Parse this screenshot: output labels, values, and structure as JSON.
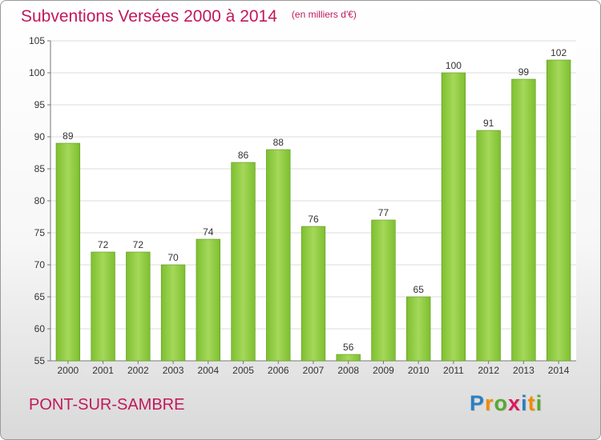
{
  "title": "Subventions Versées 2000 à 2014",
  "subtitle": "(en milliers d'€)",
  "commune": "PONT-SUR-SAMBRE",
  "logo": {
    "letters": [
      "P",
      "r",
      "o",
      "x",
      "i",
      "t",
      "i"
    ],
    "colors": [
      "#2a7fc1",
      "#f08a00",
      "#57a82f",
      "#d81b60",
      "#2a7fc1",
      "#f08a00",
      "#57a82f"
    ]
  },
  "chart_data": {
    "type": "bar",
    "categories": [
      "2000",
      "2001",
      "2002",
      "2003",
      "2004",
      "2005",
      "2006",
      "2007",
      "2008",
      "2009",
      "2010",
      "2011",
      "2012",
      "2013",
      "2014"
    ],
    "values": [
      89,
      72,
      72,
      70,
      74,
      86,
      88,
      76,
      56,
      77,
      65,
      100,
      91,
      99,
      102
    ],
    "ylim": [
      55,
      105
    ],
    "yticks": [
      55,
      60,
      65,
      70,
      75,
      80,
      85,
      90,
      95,
      100,
      105
    ],
    "grid": true,
    "bar_color": "#7dbf2f",
    "bar_color_light": "#a5d85a"
  }
}
